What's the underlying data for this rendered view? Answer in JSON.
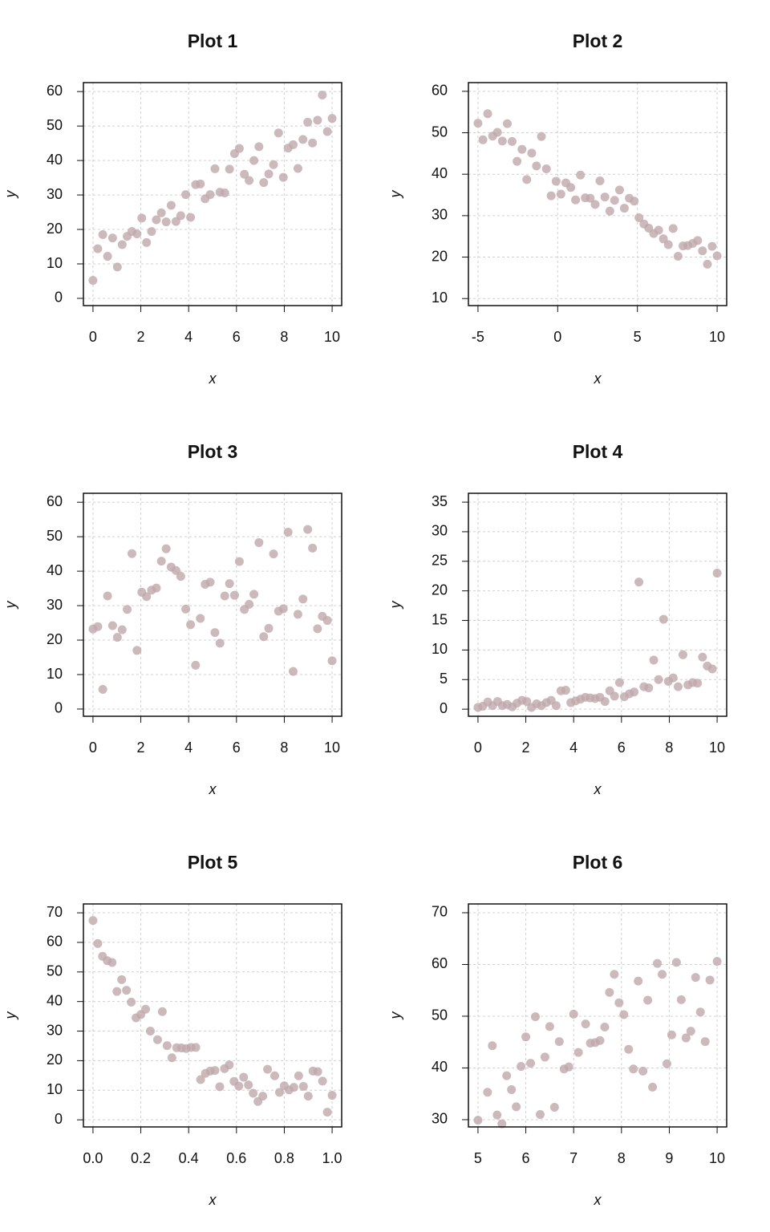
{
  "chart_data": [
    {
      "type": "scatter",
      "title": "Plot 1",
      "x_label": "x",
      "y_label": "y",
      "color": "#bfa8ab",
      "grid": true,
      "x": [
        0,
        0.2,
        0.41,
        0.61,
        0.82,
        1.02,
        1.22,
        1.43,
        1.63,
        1.84,
        2.04,
        2.24,
        2.45,
        2.65,
        2.86,
        3.06,
        3.27,
        3.47,
        3.67,
        3.88,
        4.08,
        4.29,
        4.49,
        4.69,
        4.9,
        5.1,
        5.31,
        5.51,
        5.71,
        5.92,
        6.12,
        6.33,
        6.53,
        6.73,
        6.94,
        7.14,
        7.35,
        7.55,
        7.76,
        7.96,
        8.16,
        8.37,
        8.57,
        8.78,
        8.98,
        9.18,
        9.39,
        9.59,
        9.8,
        10
      ],
      "values": [
        5.2,
        14.4,
        18.5,
        12.2,
        17.5,
        9.1,
        15.6,
        18.0,
        19.4,
        18.7,
        23.3,
        16.2,
        19.4,
        22.8,
        24.8,
        22.2,
        27.0,
        22.3,
        24.0,
        30.1,
        23.5,
        33.0,
        33.2,
        28.9,
        30.1,
        37.6,
        30.8,
        30.6,
        37.5,
        42.0,
        43.5,
        36.0,
        34.2,
        40.0,
        44.0,
        33.6,
        36.1,
        38.8,
        48.0,
        35.1,
        43.6,
        44.6,
        37.7,
        46.1,
        51.1,
        45.1,
        51.7,
        59.0,
        48.4,
        52.2
      ],
      "xlim": [
        -0.4,
        10.4
      ],
      "ylim": [
        -2.1,
        62.6
      ],
      "xticks": [
        0,
        2,
        4,
        6,
        8,
        10
      ],
      "yticks": [
        0,
        10,
        20,
        30,
        40,
        50,
        60
      ]
    },
    {
      "type": "scatter",
      "title": "Plot 2",
      "x_label": "x",
      "y_label": "y",
      "color": "#bfa8ab",
      "grid": true,
      "x": [
        -5,
        -4.69,
        -4.39,
        -4.08,
        -3.78,
        -3.47,
        -3.16,
        -2.86,
        -2.55,
        -2.24,
        -1.94,
        -1.63,
        -1.33,
        -1.02,
        -0.71,
        -0.41,
        -0.1,
        0.2,
        0.51,
        0.82,
        1.12,
        1.43,
        1.73,
        2.04,
        2.35,
        2.65,
        2.96,
        3.27,
        3.57,
        3.88,
        4.18,
        4.49,
        4.8,
        5.1,
        5.41,
        5.71,
        6.02,
        6.33,
        6.63,
        6.94,
        7.24,
        7.55,
        7.86,
        8.16,
        8.47,
        8.78,
        9.08,
        9.39,
        9.69,
        10
      ],
      "values": [
        52.3,
        48.3,
        54.6,
        49.2,
        50.1,
        48.0,
        52.2,
        47.9,
        43.1,
        46.0,
        38.7,
        45.1,
        42.0,
        49.1,
        41.3,
        34.8,
        38.3,
        35.2,
        37.9,
        36.8,
        33.8,
        39.8,
        34.3,
        34.2,
        32.7,
        38.4,
        34.5,
        31.1,
        33.7,
        36.2,
        31.8,
        34.2,
        33.5,
        29.5,
        28.0,
        27.0,
        25.7,
        26.5,
        24.4,
        23.0,
        26.9,
        20.2,
        22.7,
        22.8,
        23.3,
        24.0,
        21.5,
        18.3,
        22.6,
        20.3
      ],
      "xlim": [
        -5.6,
        10.6
      ],
      "ylim": [
        8.3,
        62.1
      ],
      "xticks": [
        -5,
        0,
        5,
        10
      ],
      "yticks": [
        10,
        20,
        30,
        40,
        50,
        60
      ]
    },
    {
      "type": "scatter",
      "title": "Plot 3",
      "x_label": "x",
      "y_label": "y",
      "color": "#bfa8ab",
      "grid": true,
      "x": [
        0,
        0.2,
        0.41,
        0.61,
        0.82,
        1.02,
        1.22,
        1.43,
        1.63,
        1.84,
        2.04,
        2.24,
        2.45,
        2.65,
        2.86,
        3.06,
        3.27,
        3.47,
        3.67,
        3.88,
        4.08,
        4.29,
        4.49,
        4.69,
        4.9,
        5.1,
        5.31,
        5.51,
        5.71,
        5.92,
        6.12,
        6.33,
        6.53,
        6.73,
        6.94,
        7.14,
        7.35,
        7.55,
        7.76,
        7.96,
        8.16,
        8.37,
        8.57,
        8.78,
        8.98,
        9.18,
        9.39,
        9.59,
        9.8,
        10
      ],
      "values": [
        23.2,
        23.9,
        5.7,
        32.8,
        24.2,
        20.8,
        23.0,
        28.9,
        45.1,
        17.0,
        33.9,
        32.6,
        34.5,
        35.1,
        42.9,
        46.5,
        41.2,
        40.2,
        38.5,
        29.0,
        24.5,
        12.7,
        26.3,
        36.2,
        36.8,
        22.2,
        19.1,
        32.8,
        36.4,
        33.0,
        42.8,
        28.9,
        30.4,
        33.3,
        48.3,
        21.0,
        23.4,
        45.0,
        28.4,
        29.1,
        51.3,
        10.9,
        27.5,
        31.9,
        52.1,
        46.7,
        23.3,
        26.9,
        25.7,
        14.0
      ],
      "xlim": [
        -0.4,
        10.4
      ],
      "ylim": [
        -2.1,
        62.6
      ],
      "xticks": [
        0,
        2,
        4,
        6,
        8,
        10
      ],
      "yticks": [
        0,
        10,
        20,
        30,
        40,
        50,
        60
      ]
    },
    {
      "type": "scatter",
      "title": "Plot 4",
      "x_label": "x",
      "y_label": "y",
      "color": "#bfa8ab",
      "grid": true,
      "x": [
        0,
        0.2,
        0.41,
        0.61,
        0.82,
        1.02,
        1.22,
        1.43,
        1.63,
        1.84,
        2.04,
        2.24,
        2.45,
        2.65,
        2.86,
        3.06,
        3.27,
        3.47,
        3.67,
        3.88,
        4.08,
        4.29,
        4.49,
        4.69,
        4.9,
        5.1,
        5.31,
        5.51,
        5.71,
        5.92,
        6.12,
        6.33,
        6.53,
        6.73,
        6.94,
        7.14,
        7.35,
        7.55,
        7.76,
        7.96,
        8.16,
        8.37,
        8.57,
        8.78,
        8.98,
        9.18,
        9.39,
        9.59,
        9.8,
        10
      ],
      "values": [
        0.3,
        0.5,
        1.2,
        0.6,
        1.3,
        0.6,
        0.8,
        0.4,
        1.0,
        1.5,
        1.3,
        0.3,
        0.9,
        0.6,
        1.1,
        1.5,
        0.6,
        3.1,
        3.2,
        1.1,
        1.4,
        1.7,
        2.0,
        1.9,
        1.8,
        2.0,
        1.3,
        3.1,
        2.2,
        4.5,
        2.1,
        2.6,
        2.9,
        21.5,
        3.8,
        3.6,
        8.3,
        5.0,
        15.2,
        4.7,
        5.3,
        3.8,
        9.2,
        4.1,
        4.5,
        4.4,
        8.8,
        7.3,
        6.8,
        23.0
      ],
      "xlim": [
        -0.4,
        10.4
      ],
      "ylim": [
        -1.2,
        36.5
      ],
      "xticks": [
        0,
        2,
        4,
        6,
        8,
        10
      ],
      "yticks": [
        0,
        5,
        10,
        15,
        20,
        25,
        30,
        35
      ]
    },
    {
      "type": "scatter",
      "title": "Plot 5",
      "x_label": "x",
      "y_label": "y",
      "color": "#bfa8ab",
      "grid": true,
      "x": [
        0,
        0.02,
        0.04,
        0.06,
        0.08,
        0.1,
        0.12,
        0.14,
        0.16,
        0.18,
        0.2,
        0.22,
        0.24,
        0.27,
        0.29,
        0.31,
        0.33,
        0.35,
        0.37,
        0.39,
        0.41,
        0.43,
        0.45,
        0.47,
        0.49,
        0.51,
        0.53,
        0.55,
        0.57,
        0.59,
        0.61,
        0.63,
        0.65,
        0.67,
        0.69,
        0.71,
        0.73,
        0.76,
        0.78,
        0.8,
        0.82,
        0.84,
        0.86,
        0.88,
        0.9,
        0.92,
        0.94,
        0.96,
        0.98,
        1
      ],
      "values": [
        67.4,
        59.6,
        55.3,
        53.8,
        53.2,
        43.4,
        47.4,
        43.8,
        39.8,
        34.5,
        35.6,
        37.4,
        30.0,
        27.1,
        36.6,
        25.1,
        21.0,
        24.4,
        24.3,
        24.1,
        24.5,
        24.5,
        13.6,
        15.7,
        16.5,
        16.7,
        11.2,
        17.3,
        18.6,
        13.0,
        11.4,
        14.4,
        11.8,
        9.0,
        6.2,
        8.0,
        17.1,
        14.9,
        9.3,
        11.5,
        10.1,
        11.0,
        14.9,
        11.3,
        8.0,
        16.5,
        16.3,
        13.1,
        2.6,
        8.3
      ],
      "xlim": [
        -0.04,
        1.04
      ],
      "ylim": [
        -2.4,
        73
      ],
      "xticks": [
        {
          "value": 0,
          "label": "0.0"
        },
        0.2,
        0.4,
        0.6,
        0.8,
        {
          "value": 1,
          "label": "1.0"
        }
      ],
      "yticks": [
        0,
        10,
        20,
        30,
        40,
        50,
        60,
        70
      ]
    },
    {
      "type": "scatter",
      "title": "Plot 6",
      "x_label": "x",
      "y_label": "y",
      "color": "#bfa8ab",
      "grid": true,
      "x": [
        5,
        5.2,
        5.3,
        5.4,
        5.5,
        5.6,
        5.7,
        5.8,
        5.9,
        6.0,
        6.1,
        6.2,
        6.3,
        6.4,
        6.5,
        6.6,
        6.7,
        6.8,
        6.9,
        7.0,
        7.1,
        7.25,
        7.35,
        7.45,
        7.55,
        7.65,
        7.75,
        7.85,
        7.95,
        8.05,
        8.15,
        8.25,
        8.35,
        8.45,
        8.55,
        8.65,
        8.75,
        8.85,
        8.95,
        9.05,
        9.15,
        9.25,
        9.35,
        9.45,
        9.55,
        9.65,
        9.75,
        9.85,
        10
      ],
      "values": [
        29.9,
        35.3,
        44.3,
        30.9,
        29.2,
        38.5,
        35.8,
        32.5,
        40.3,
        46.0,
        40.9,
        49.9,
        31.0,
        42.1,
        48.0,
        32.4,
        45.1,
        39.8,
        40.2,
        50.4,
        43.0,
        48.5,
        44.8,
        44.9,
        45.3,
        47.9,
        54.6,
        58.1,
        52.6,
        50.3,
        43.6,
        39.8,
        56.8,
        39.4,
        53.1,
        36.3,
        60.2,
        58.1,
        40.8,
        46.4,
        60.4,
        53.2,
        45.8,
        47.1,
        57.5,
        50.8,
        45.1,
        57.0,
        60.6
      ],
      "xlim": [
        4.8,
        10.2
      ],
      "ylim": [
        28.6,
        71.7
      ],
      "xticks": [
        5,
        6,
        7,
        8,
        9,
        10
      ],
      "yticks": [
        30,
        40,
        50,
        60,
        70
      ]
    }
  ]
}
